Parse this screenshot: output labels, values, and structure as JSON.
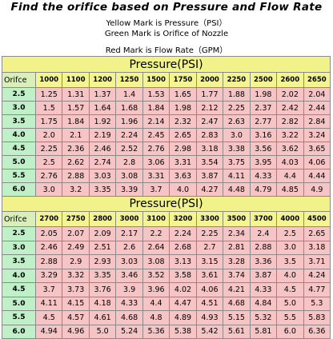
{
  "title": "Find the orifice based on Pressure and Flow Rate",
  "legend": [
    "Yellow Mark is Pressure（PSI）",
    "Green Mark is Orifice of Nozzle",
    "Red Mark is Flow Rate（GPM）"
  ],
  "colors": {
    "pressure_yellow": "#f4f490",
    "orifice_green": "#bff0c8",
    "flow_red": "#f6c4c4",
    "label_green": "#d8f0b8"
  },
  "tables": [
    {
      "banner": "Pressure(PSI)",
      "corner": "Orifce",
      "pressures": [
        "1000",
        "1100",
        "1200",
        "1250",
        "1500",
        "1750",
        "2000",
        "2250",
        "2500",
        "2600",
        "2650"
      ],
      "rows": [
        {
          "orifice": "2.5",
          "flows": [
            "1.25",
            "1.31",
            "1.37",
            "1.4",
            "1.53",
            "1.65",
            "1.77",
            "1.88",
            "1.98",
            "2.02",
            "2.04"
          ]
        },
        {
          "orifice": "3.0",
          "flows": [
            "1.5",
            "1.57",
            "1.64",
            "1.68",
            "1.84",
            "1.98",
            "2.12",
            "2.25",
            "2.37",
            "2.42",
            "2.44"
          ]
        },
        {
          "orifice": "3.5",
          "flows": [
            "1.75",
            "1.84",
            "1.92",
            "1.96",
            "2.14",
            "2.32",
            "2.47",
            "2.63",
            "2.77",
            "2.82",
            "2.84"
          ]
        },
        {
          "orifice": "4.0",
          "flows": [
            "2.0",
            "2.1",
            "2.19",
            "2.24",
            "2.45",
            "2.65",
            "2.83",
            "3.0",
            "3.16",
            "3.22",
            "3.24"
          ]
        },
        {
          "orifice": "4.5",
          "flows": [
            "2.25",
            "2.36",
            "2.46",
            "2.52",
            "2.76",
            "2.98",
            "3.18",
            "3.38",
            "3.56",
            "3.62",
            "3.65"
          ]
        },
        {
          "orifice": "5.0",
          "flows": [
            "2.5",
            "2.62",
            "2.74",
            "2.8",
            "3.06",
            "3.31",
            "3.54",
            "3.75",
            "3.95",
            "4.03",
            "4.06"
          ]
        },
        {
          "orifice": "5.5",
          "flows": [
            "2.76",
            "2.88",
            "3.03",
            "3.08",
            "3.31",
            "3.63",
            "3.87",
            "4.11",
            "4.33",
            "4.4",
            "4.44"
          ]
        },
        {
          "orifice": "6.0",
          "flows": [
            "3.0",
            "3.2",
            "3.35",
            "3.39",
            "3.7",
            "4.0",
            "4.27",
            "4.48",
            "4.79",
            "4.85",
            "4.9"
          ]
        }
      ]
    },
    {
      "banner": "Pressure(PSI)",
      "corner": "Orifce",
      "pressures": [
        "2700",
        "2750",
        "2800",
        "3000",
        "3100",
        "3200",
        "3300",
        "3500",
        "3700",
        "4000",
        "4500"
      ],
      "rows": [
        {
          "orifice": "2.5",
          "flows": [
            "2.05",
            "2.07",
            "2.09",
            "2.17",
            "2.2",
            "2.24",
            "2.25",
            "2.34",
            "2.4",
            "2.5",
            "2.65"
          ]
        },
        {
          "orifice": "3.0",
          "flows": [
            "2.46",
            "2.49",
            "2.51",
            "2.6",
            "2.64",
            "2.68",
            "2.7",
            "2.81",
            "2.88",
            "3.0",
            "3.18"
          ]
        },
        {
          "orifice": "3.5",
          "flows": [
            "2.88",
            "2.9",
            "2.93",
            "3.03",
            "3.08",
            "3.13",
            "3.15",
            "3.28",
            "3.36",
            "3.5",
            "3.71"
          ]
        },
        {
          "orifice": "4.0",
          "flows": [
            "3.29",
            "3.32",
            "3.35",
            "3.46",
            "3.52",
            "3.58",
            "3.61",
            "3.74",
            "3.87",
            "4.0",
            "4.24"
          ]
        },
        {
          "orifice": "4.5",
          "flows": [
            "3.7",
            "3.73",
            "3.76",
            "3.9",
            "3.96",
            "4.02",
            "4.06",
            "4.21",
            "4.33",
            "4.5",
            "4.77"
          ]
        },
        {
          "orifice": "5.0",
          "flows": [
            "4.11",
            "4.15",
            "4.18",
            "4.33",
            "4.4",
            "4.47",
            "4.51",
            "4.68",
            "4.84",
            "5.0",
            "5.3"
          ]
        },
        {
          "orifice": "5.5",
          "flows": [
            "4.5",
            "4.57",
            "4.61",
            "4.68",
            "4.8",
            "4.89",
            "4.93",
            "5.15",
            "5.32",
            "5.5",
            "5.83"
          ]
        },
        {
          "orifice": "6.0",
          "flows": [
            "4.94",
            "4.96",
            "5.0",
            "5.24",
            "5.36",
            "5.38",
            "5.42",
            "5.61",
            "5.81",
            "6.0",
            "6.36"
          ]
        }
      ]
    }
  ]
}
